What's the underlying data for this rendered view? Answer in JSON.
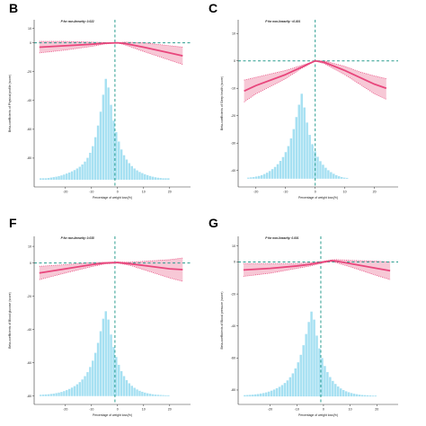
{
  "colors": {
    "curve": "#e8467c",
    "ci_fill": "#f4b6c8",
    "ci_line": "#e8467c",
    "hist": "#a6e0f2",
    "ref_line": "#2a9d8f",
    "axis": "#333333"
  },
  "chart_data": [
    {
      "type": "line",
      "panel": "B",
      "annotation": "P for non-linearity: 0.022",
      "ylabel": "Beta-coefficients of Physical profile (score)",
      "xlabel": "Percentage of weight loss(%)",
      "xlim": [
        -32,
        28
      ],
      "ylim": [
        -100,
        16
      ],
      "xticks": [
        -20,
        -10,
        0,
        10,
        20
      ],
      "yticks": [
        -80,
        -60,
        -40,
        -20,
        0,
        10
      ],
      "ytick_labels": [
        "-80",
        "-60",
        "-40",
        "-20",
        "0",
        "10"
      ],
      "ref_x": -1,
      "ref_y": 0,
      "curve": {
        "x": [
          -30,
          -20,
          -10,
          -5,
          0,
          3,
          10,
          20,
          25
        ],
        "y": [
          -3,
          -2,
          -1,
          -0.3,
          0,
          -0.5,
          -3,
          -7,
          -9
        ]
      },
      "ci_lower": [
        -7,
        -5,
        -2.5,
        -0.8,
        0,
        -1.5,
        -6,
        -12,
        -15
      ],
      "ci_upper": [
        1,
        1,
        0.5,
        0.2,
        0,
        0.5,
        0,
        -2,
        -3
      ],
      "histogram": {
        "bin_start": -30,
        "bin_width": 1,
        "baseline": -95,
        "counts_scaled": [
          1.0,
          1.0,
          1.0,
          1.2,
          1.5,
          1.8,
          2.1,
          2.5,
          3.0,
          3.6,
          4.3,
          5.0,
          5.8,
          6.7,
          7.8,
          9.0,
          10.6,
          12.6,
          15.2,
          18.7,
          23.3,
          29.5,
          37.6,
          47.2,
          59.0,
          70.0,
          64.0,
          52.0,
          41.0,
          33.0,
          26.5,
          21.0,
          17.0,
          14.0,
          11.5,
          9.5,
          7.8,
          6.5,
          5.4,
          4.6,
          3.8,
          3.2,
          2.6,
          2.1,
          1.7,
          1.4,
          1.2,
          1.0,
          1.0,
          1.0
        ]
      }
    },
    {
      "type": "line",
      "panel": "C",
      "annotation": "P for non-linearity: <0.001",
      "ylabel": "Beta-coefficients of Sleep health (score)",
      "xlabel": "Percentage of weight loss(%)",
      "xlim": [
        -26,
        28
      ],
      "ylim": [
        -46,
        15
      ],
      "xticks": [
        -20,
        -10,
        0,
        10,
        20
      ],
      "yticks": [
        -40,
        -30,
        -20,
        -10,
        0,
        10
      ],
      "ytick_labels": [
        "-40",
        "-30",
        "-20",
        "-10",
        "0",
        "10"
      ],
      "ref_x": 0,
      "ref_y": 0,
      "curve": {
        "x": [
          -24,
          -20,
          -10,
          -5,
          0,
          3,
          10,
          15,
          20,
          24
        ],
        "y": [
          -11,
          -9,
          -5,
          -2.5,
          0,
          -0.5,
          -3.5,
          -6,
          -8.5,
          -10
        ]
      },
      "ci_lower": [
        -15,
        -12,
        -6.5,
        -3,
        0,
        -1,
        -5,
        -8.5,
        -12,
        -14
      ],
      "ci_upper": [
        -7,
        -6,
        -3.5,
        -1.8,
        0,
        0,
        -2,
        -4,
        -5.5,
        -6.5
      ],
      "histogram": {
        "bin_start": -23,
        "bin_width": 0.9,
        "baseline": -43,
        "counts_scaled": [
          0.4,
          0.5,
          0.6,
          0.8,
          1.0,
          1.3,
          1.7,
          2.2,
          2.8,
          3.5,
          4.3,
          5.3,
          6.5,
          7.9,
          9.7,
          11.9,
          14.7,
          18.1,
          22.5,
          27.0,
          31.0,
          26.0,
          20.5,
          16.0,
          12.6,
          10.0,
          8.0,
          6.4,
          5.1,
          4.0,
          3.1,
          2.4,
          1.8,
          1.3,
          0.9,
          0.6,
          0.4,
          0.3
        ]
      }
    },
    {
      "type": "line",
      "panel": "F",
      "annotation": "P for non-linearity: 0.035",
      "ylabel": "Beta-coefficients of Blood glucose (score)",
      "xlabel": "Percentage of weight loss(%)",
      "xlim": [
        -32,
        28
      ],
      "ylim": [
        -85,
        16
      ],
      "xticks": [
        -20,
        -10,
        0,
        10,
        20
      ],
      "yticks": [
        -80,
        -60,
        -40,
        -20,
        0,
        10
      ],
      "ytick_labels": [
        "-80",
        "-60",
        "-40",
        "-20",
        "0",
        "10"
      ],
      "ref_x": -1,
      "ref_y": 0,
      "curve": {
        "x": [
          -30,
          -20,
          -10,
          -5,
          0,
          5,
          10,
          20,
          25
        ],
        "y": [
          -6,
          -3.5,
          -1,
          0,
          0.3,
          -0.5,
          -1.5,
          -3.5,
          -4
        ]
      },
      "ci_lower": [
        -10,
        -6,
        -2.2,
        -0.6,
        0,
        -1.5,
        -4,
        -9,
        -11
      ],
      "ci_upper": [
        -2,
        -1,
        0.2,
        0.4,
        0.5,
        0.5,
        1,
        2,
        3
      ],
      "histogram": {
        "bin_start": -30,
        "bin_width": 1,
        "baseline": -80,
        "counts_scaled": [
          0.8,
          0.9,
          1.0,
          1.1,
          1.3,
          1.5,
          1.8,
          2.1,
          2.5,
          3.0,
          3.6,
          4.3,
          5.1,
          6.0,
          7.1,
          8.4,
          10.0,
          12.0,
          14.4,
          17.5,
          21.3,
          26.0,
          32.0,
          39.0,
          46.5,
          51.0,
          46.0,
          37.0,
          29.5,
          23.5,
          18.8,
          15.0,
          12.0,
          9.6,
          7.7,
          6.2,
          5.0,
          4.0,
          3.2,
          2.6,
          2.1,
          1.7,
          1.4,
          1.1,
          0.9,
          0.8,
          0.7,
          0.6,
          0.5,
          0.5
        ]
      }
    },
    {
      "type": "line",
      "panel": "G",
      "annotation": "P for non-linearity: 0.001",
      "ylabel": "Beta-coefficients of Blood pressure (score)",
      "xlabel": "Percentage of weight loss(%)",
      "xlim": [
        -32,
        28
      ],
      "ylim": [
        -89,
        16
      ],
      "xticks": [
        -20,
        -10,
        0,
        10,
        20
      ],
      "yticks": [
        -80,
        -60,
        -40,
        -20,
        0,
        10
      ],
      "ytick_labels": [
        "-80",
        "-60",
        "-40",
        "-20",
        "0",
        "10"
      ],
      "ref_x": -1,
      "ref_y": 0,
      "curve": {
        "x": [
          -30,
          -20,
          -10,
          -5,
          0,
          3,
          5,
          10,
          20,
          25
        ],
        "y": [
          -5,
          -4,
          -2.5,
          -1.5,
          0,
          0.8,
          0.5,
          -1,
          -4,
          -5.5
        ]
      },
      "ci_lower": [
        -9,
        -7,
        -4,
        -2.5,
        -0.5,
        0.3,
        -0.5,
        -3,
        -8.5,
        -11
      ],
      "ci_upper": [
        -1,
        -1,
        -1,
        -0.5,
        0.5,
        1.3,
        1.5,
        1,
        0.5,
        0
      ],
      "histogram": {
        "bin_start": -30,
        "bin_width": 1,
        "baseline": -84,
        "counts_scaled": [
          0.8,
          0.9,
          1.0,
          1.1,
          1.3,
          1.5,
          1.8,
          2.1,
          2.5,
          3.0,
          3.6,
          4.3,
          5.1,
          6.0,
          7.1,
          8.4,
          10.0,
          12.0,
          14.4,
          17.5,
          21.3,
          26.0,
          32.0,
          39.0,
          46.5,
          53.0,
          48.0,
          38.0,
          30.0,
          24.0,
          19.0,
          15.2,
          12.1,
          9.7,
          7.8,
          6.2,
          5.0,
          4.0,
          3.2,
          2.6,
          2.1,
          1.7,
          1.4,
          1.1,
          0.9,
          0.8,
          0.7,
          0.6,
          0.5,
          0.5
        ]
      }
    }
  ]
}
